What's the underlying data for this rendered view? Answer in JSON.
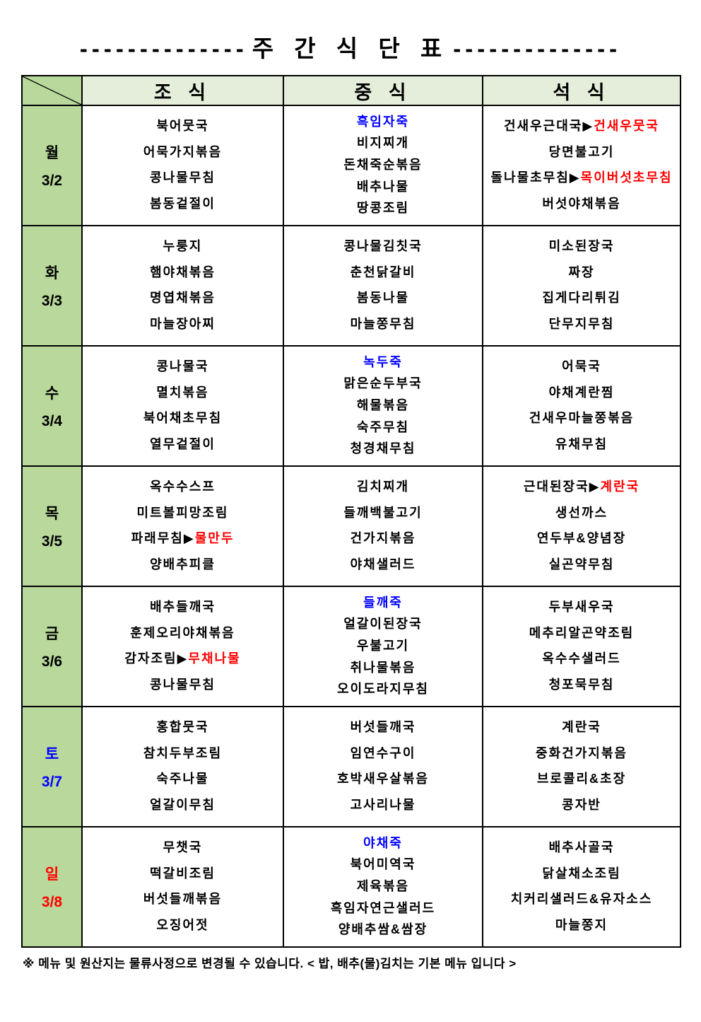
{
  "title": {
    "left_dashes": "--------------",
    "text": "주 간 식 단 표",
    "right_dashes": "--------------"
  },
  "header": {
    "columns": [
      "조  식",
      "중  식",
      "석  식"
    ]
  },
  "colors": {
    "day_cell_bg": "#b9d89b",
    "header_bg": "#e5eedb",
    "text_black": "#000000",
    "highlight_blue": "#0000ff",
    "highlight_red": "#ff0000"
  },
  "days": [
    {
      "label": "월",
      "date": "3/2",
      "color": "#000000",
      "breakfast": [
        {
          "text": "북어뭇국",
          "color": "#000000"
        },
        {
          "text": "어묵가지볶음",
          "color": "#000000"
        },
        {
          "text": "콩나물무침",
          "color": "#000000"
        },
        {
          "text": "봄동겉절이",
          "color": "#000000"
        }
      ],
      "lunch": [
        {
          "text": "흑임자죽",
          "color": "#0000ff"
        },
        {
          "text": "비지찌개",
          "color": "#000000"
        },
        {
          "text": "돈채죽순볶음",
          "color": "#000000"
        },
        {
          "text": "배추나물",
          "color": "#000000"
        },
        {
          "text": "땅콩조림",
          "color": "#000000"
        }
      ],
      "dinner": [
        {
          "segments": [
            {
              "text": "건새우근대국▶",
              "color": "#000000"
            },
            {
              "text": "건새우뭇국",
              "color": "#ff0000"
            }
          ]
        },
        {
          "text": "당면불고기",
          "color": "#000000"
        },
        {
          "segments": [
            {
              "text": "돌나물초무침▶",
              "color": "#000000"
            },
            {
              "text": "목이버섯초무침",
              "color": "#ff0000"
            }
          ]
        },
        {
          "text": "버섯야채볶음",
          "color": "#000000"
        }
      ]
    },
    {
      "label": "화",
      "date": "3/3",
      "color": "#000000",
      "breakfast": [
        {
          "text": "누룽지",
          "color": "#000000"
        },
        {
          "text": "햄야채볶음",
          "color": "#000000"
        },
        {
          "text": "명엽채볶음",
          "color": "#000000"
        },
        {
          "text": "마늘장아찌",
          "color": "#000000"
        }
      ],
      "lunch": [
        {
          "text": "콩나물김칫국",
          "color": "#000000"
        },
        {
          "text": "춘천닭갈비",
          "color": "#000000"
        },
        {
          "text": "봄동나물",
          "color": "#000000"
        },
        {
          "text": "마늘쫑무침",
          "color": "#000000"
        }
      ],
      "dinner": [
        {
          "text": "미소된장국",
          "color": "#000000"
        },
        {
          "text": "짜장",
          "color": "#000000"
        },
        {
          "text": "집게다리튀김",
          "color": "#000000"
        },
        {
          "text": "단무지무침",
          "color": "#000000"
        }
      ]
    },
    {
      "label": "수",
      "date": "3/4",
      "color": "#000000",
      "breakfast": [
        {
          "text": "콩나물국",
          "color": "#000000"
        },
        {
          "text": "멸치볶음",
          "color": "#000000"
        },
        {
          "text": "북어채초무침",
          "color": "#000000"
        },
        {
          "text": "열무겉절이",
          "color": "#000000"
        }
      ],
      "lunch": [
        {
          "text": "녹두죽",
          "color": "#0000ff"
        },
        {
          "text": "맑은순두부국",
          "color": "#000000"
        },
        {
          "text": "해물볶음",
          "color": "#000000"
        },
        {
          "text": "숙주무침",
          "color": "#000000"
        },
        {
          "text": "청경채무침",
          "color": "#000000"
        }
      ],
      "dinner": [
        {
          "text": "어묵국",
          "color": "#000000"
        },
        {
          "text": "야채계란찜",
          "color": "#000000"
        },
        {
          "text": "건새우마늘쫑볶음",
          "color": "#000000"
        },
        {
          "text": "유채무침",
          "color": "#000000"
        }
      ]
    },
    {
      "label": "목",
      "date": "3/5",
      "color": "#000000",
      "breakfast": [
        {
          "text": "옥수수스프",
          "color": "#000000"
        },
        {
          "text": "미트볼피망조림",
          "color": "#000000"
        },
        {
          "segments": [
            {
              "text": "파래무침▶",
              "color": "#000000"
            },
            {
              "text": "물만두",
              "color": "#ff0000"
            }
          ]
        },
        {
          "text": "양배추피클",
          "color": "#000000"
        }
      ],
      "lunch": [
        {
          "text": "김치찌개",
          "color": "#000000"
        },
        {
          "text": "들깨백불고기",
          "color": "#000000"
        },
        {
          "text": "건가지볶음",
          "color": "#000000"
        },
        {
          "text": "야채샐러드",
          "color": "#000000"
        }
      ],
      "dinner": [
        {
          "segments": [
            {
              "text": "근대된장국▶",
              "color": "#000000"
            },
            {
              "text": "계란국",
              "color": "#ff0000"
            }
          ]
        },
        {
          "text": "생선까스",
          "color": "#000000"
        },
        {
          "text": "연두부&양념장",
          "color": "#000000"
        },
        {
          "text": "실곤약무침",
          "color": "#000000"
        }
      ]
    },
    {
      "label": "금",
      "date": "3/6",
      "color": "#000000",
      "breakfast": [
        {
          "text": "배추들깨국",
          "color": "#000000"
        },
        {
          "text": "훈제오리야채볶음",
          "color": "#000000"
        },
        {
          "segments": [
            {
              "text": "감자조림▶",
              "color": "#000000"
            },
            {
              "text": "무채나물",
              "color": "#ff0000"
            }
          ]
        },
        {
          "text": "콩나물무침",
          "color": "#000000"
        }
      ],
      "lunch": [
        {
          "text": "들깨죽",
          "color": "#0000ff"
        },
        {
          "text": "얼갈이된장국",
          "color": "#000000"
        },
        {
          "text": "우불고기",
          "color": "#000000"
        },
        {
          "text": "취나물볶음",
          "color": "#000000"
        },
        {
          "text": "오이도라지무침",
          "color": "#000000"
        }
      ],
      "dinner": [
        {
          "text": "두부새우국",
          "color": "#000000"
        },
        {
          "text": "메추리알곤약조림",
          "color": "#000000"
        },
        {
          "text": "옥수수샐러드",
          "color": "#000000"
        },
        {
          "text": "청포묵무침",
          "color": "#000000"
        }
      ]
    },
    {
      "label": "토",
      "date": "3/7",
      "color": "#0000ff",
      "breakfast": [
        {
          "text": "홍합뭇국",
          "color": "#000000"
        },
        {
          "text": "참치두부조림",
          "color": "#000000"
        },
        {
          "text": "숙주나물",
          "color": "#000000"
        },
        {
          "text": "얼갈이무침",
          "color": "#000000"
        }
      ],
      "lunch": [
        {
          "text": "버섯들깨국",
          "color": "#000000"
        },
        {
          "text": "임연수구이",
          "color": "#000000"
        },
        {
          "text": "호박새우살볶음",
          "color": "#000000"
        },
        {
          "text": "고사리나물",
          "color": "#000000"
        }
      ],
      "dinner": [
        {
          "text": "계란국",
          "color": "#000000"
        },
        {
          "text": "중화건가지볶음",
          "color": "#000000"
        },
        {
          "text": "브로콜리&초장",
          "color": "#000000"
        },
        {
          "text": "콩자반",
          "color": "#000000"
        }
      ]
    },
    {
      "label": "일",
      "date": "3/8",
      "color": "#ff0000",
      "breakfast": [
        {
          "text": "무챗국",
          "color": "#000000"
        },
        {
          "text": "떡갈비조림",
          "color": "#000000"
        },
        {
          "text": "버섯들깨볶음",
          "color": "#000000"
        },
        {
          "text": "오징어젓",
          "color": "#000000"
        }
      ],
      "lunch": [
        {
          "text": "야채죽",
          "color": "#0000ff"
        },
        {
          "text": "북어미역국",
          "color": "#000000"
        },
        {
          "text": "제육볶음",
          "color": "#000000"
        },
        {
          "text": "흑임자연근샐러드",
          "color": "#000000"
        },
        {
          "text": "양배추쌈&쌈장",
          "color": "#000000"
        }
      ],
      "dinner": [
        {
          "text": "배추사골국",
          "color": "#000000"
        },
        {
          "text": "닭살채소조림",
          "color": "#000000"
        },
        {
          "text": "치커리샐러드&유자소스",
          "color": "#000000"
        },
        {
          "text": "마늘쫑지",
          "color": "#000000"
        }
      ]
    }
  ],
  "footnote": "※ 메뉴 및 원산지는 물류사정으로 변경될 수 있습니다. < 밥, 배추(물)김치는 기본 메뉴 입니다 >"
}
